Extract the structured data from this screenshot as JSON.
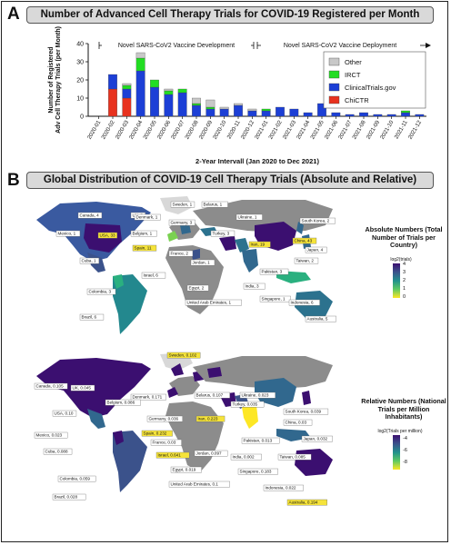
{
  "panel_a": {
    "letter": "A",
    "banner": "Number of Advanced Cell Therapy Trials for COVID-19 Registered per Month",
    "phase_left": "Novel SARS-CoV2 Vaccine Development",
    "phase_right": "Novel SARS-CoV2 Vaccine Deployment"
  },
  "panel_b": {
    "letter": "B",
    "banner": "Global Distribution of COVID-19 Cell Therapy Trials  (Absolute and Relative)"
  },
  "colors": {
    "other": "#c8c8c8",
    "irct": "#22dd22",
    "clinicaltrials": "#1c3fd6",
    "chictr": "#e8321e",
    "land_gray": "#8c8c8c",
    "ocean": "#ffffff",
    "highlight": "#f5e33a"
  },
  "chart_data": [
    {
      "type": "bar",
      "stacked": true,
      "title": "",
      "xlabel": "2-Year Intervall (Jan 2020 to Dec 2021)",
      "ylabel": "Number of Registered Adv Cell Therapy Trials (per Month)",
      "ylim": [
        0,
        40
      ],
      "yticks": [
        0,
        10,
        20,
        30,
        40
      ],
      "grid": false,
      "legend_position": "top-right",
      "categories": [
        "2020-01",
        "2020-02",
        "2020-03",
        "2020-04",
        "2020-05",
        "2020-06",
        "2020-07",
        "2020-08",
        "2020-09",
        "2020-10",
        "2020-11",
        "2020-12",
        "2021-01",
        "2021-02",
        "2021-03",
        "2021-04",
        "2021-05",
        "2021-06",
        "2021-07",
        "2021-08",
        "2021-09",
        "2021-10",
        "2021-11",
        "2021-12"
      ],
      "series": [
        {
          "name": "ChiCTR",
          "color": "#e8321e",
          "values": [
            0,
            15,
            10,
            0,
            0,
            0,
            0,
            0,
            0,
            0,
            0,
            0,
            0,
            0,
            0,
            0,
            0,
            0,
            0,
            0,
            0,
            0,
            0,
            0
          ]
        },
        {
          "name": "ClinicalTrials.gov",
          "color": "#1c3fd6",
          "values": [
            0,
            8,
            5,
            25,
            16,
            12,
            13,
            6,
            4,
            4,
            6,
            3,
            3,
            5,
            4,
            2,
            7,
            2,
            1,
            2,
            1,
            1,
            2,
            1
          ]
        },
        {
          "name": "IRCT",
          "color": "#22dd22",
          "values": [
            0,
            0,
            2,
            7,
            4,
            2,
            2,
            1,
            1,
            0,
            0,
            0,
            1,
            0,
            0,
            0,
            0,
            0,
            0,
            0,
            0,
            0,
            1,
            0
          ]
        },
        {
          "name": "Other",
          "color": "#c8c8c8",
          "values": [
            0,
            0,
            1,
            3,
            0,
            1,
            0,
            3,
            4,
            1,
            1,
            1,
            0,
            0,
            0,
            0,
            0,
            0,
            0,
            0,
            0,
            0,
            0,
            0
          ]
        }
      ]
    },
    {
      "type": "map",
      "title": "",
      "legend_title": "Absolute Numbers (Total Number of Trials per Country)",
      "legend_sub": "log2(trials)",
      "colorbar_ticks": [
        "4",
        "3",
        "2",
        "1",
        "0"
      ],
      "points": [
        {
          "label": "Canada, 4"
        },
        {
          "label": "UK, 3"
        },
        {
          "label": "USA, 33",
          "highlight": true
        },
        {
          "label": "Spain, 11",
          "highlight": true
        },
        {
          "label": "Denmark, 1"
        },
        {
          "label": "Belgium, 1"
        },
        {
          "label": "Germany, 3"
        },
        {
          "label": "France, 2"
        },
        {
          "label": "Sweden, 1"
        },
        {
          "label": "Belarus, 1"
        },
        {
          "label": "Ukraine, 1"
        },
        {
          "label": "South Korea, 2"
        },
        {
          "label": "Turkey, 3"
        },
        {
          "label": "China, 43",
          "highlight": true
        },
        {
          "label": "Iran, 19",
          "highlight": true
        },
        {
          "label": "Japan, 4"
        },
        {
          "label": "Mexico, 1"
        },
        {
          "label": "Cuba, 1"
        },
        {
          "label": "Israel, 6"
        },
        {
          "label": "Jordan, 1"
        },
        {
          "label": "Pakistan, 3"
        },
        {
          "label": "Taiwan, 2"
        },
        {
          "label": "India, 3"
        },
        {
          "label": "Colombia, 3"
        },
        {
          "label": "Egypt, 2"
        },
        {
          "label": "United Arab Emirates, 1"
        },
        {
          "label": "Singapore, 1"
        },
        {
          "label": "Indonesia, 6"
        },
        {
          "label": "Brazil, 6"
        },
        {
          "label": "Australia, 5"
        }
      ]
    },
    {
      "type": "map",
      "title": "",
      "legend_title": "Relative Numbers (National Trials per Million Inhabitants)",
      "legend_sub": "log2(Trials per million)",
      "colorbar_ticks": [
        "-4",
        "-6",
        "-8"
      ],
      "points": [
        {
          "label": "Sweden, 0.102",
          "highlight": true
        },
        {
          "label": "Canada, 0.105"
        },
        {
          "label": "UK, 0.045"
        },
        {
          "label": "Denmark, 0.171"
        },
        {
          "label": "Belarus, 0.107"
        },
        {
          "label": "Ukraine, 0.023"
        },
        {
          "label": "Belgium, 0.086"
        },
        {
          "label": "Turkey, 0.035"
        },
        {
          "label": "South Korea, 0.039"
        },
        {
          "label": "USA, 0.10"
        },
        {
          "label": "Germany, 0.036"
        },
        {
          "label": "Iran, 0.223",
          "highlight": true
        },
        {
          "label": "China, 0.03"
        },
        {
          "label": "Mexico, 0.023"
        },
        {
          "label": "Spain, 0.232",
          "highlight": true
        },
        {
          "label": "France, 0.03"
        },
        {
          "label": "Pakistan, 0.013"
        },
        {
          "label": "Japan, 0.032"
        },
        {
          "label": "Cuba, 0.088"
        },
        {
          "label": "Israel, 0.641",
          "highlight": true
        },
        {
          "label": "Jordan, 0.097"
        },
        {
          "label": "India, 0.002"
        },
        {
          "label": "Taiwan, 0.085"
        },
        {
          "label": "Colombia, 0.059"
        },
        {
          "label": "Egypt, 0.019"
        },
        {
          "label": "Singapore, 0.183"
        },
        {
          "label": "United Arab Emirates, 0.1"
        },
        {
          "label": "Indonesia, 0.022"
        },
        {
          "label": "Brazil, 0.028"
        },
        {
          "label": "Australia, 0.194",
          "highlight": true
        }
      ]
    }
  ]
}
